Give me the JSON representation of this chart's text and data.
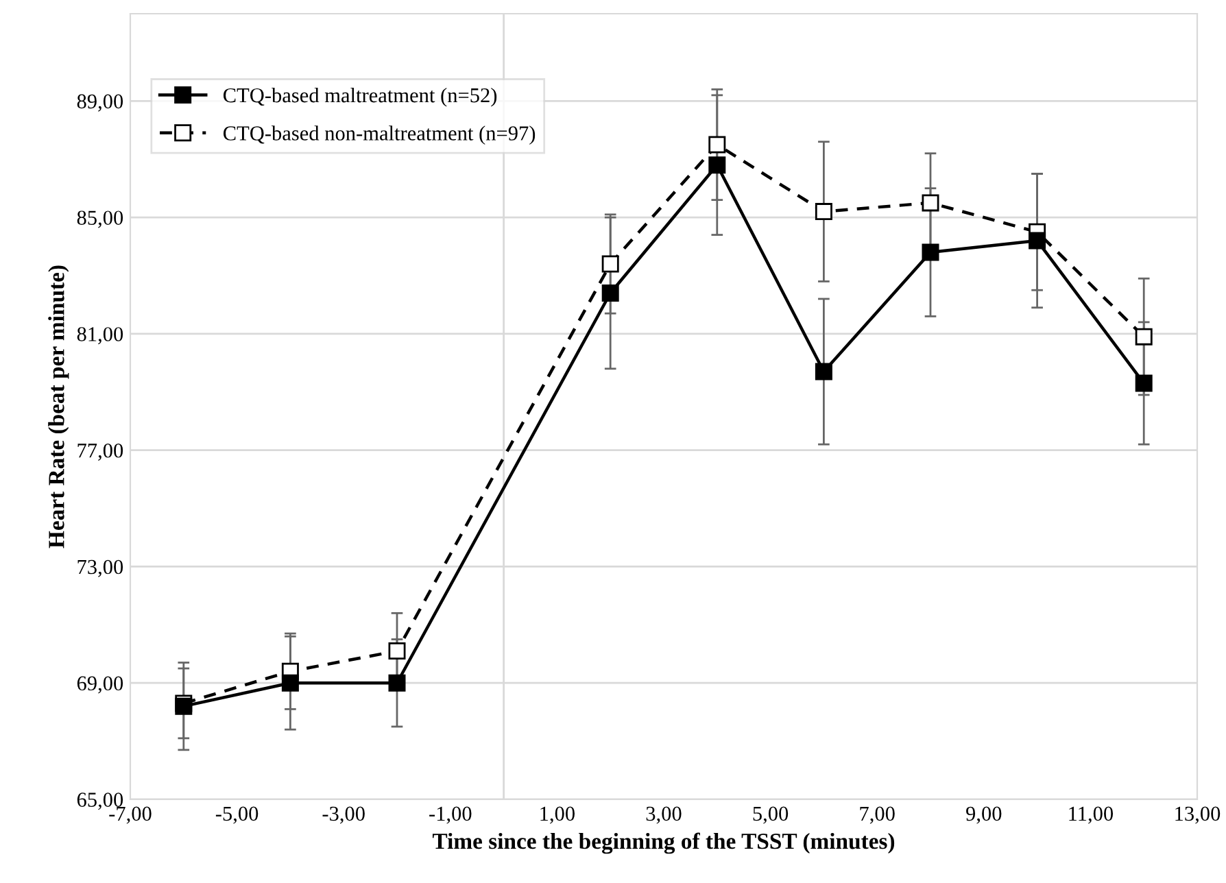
{
  "chart_data": {
    "type": "line",
    "xlabel": "Time since the beginning of the TSST (minutes)",
    "ylabel": "Heart Rate (beat per minute)",
    "x": [
      -6,
      -4,
      -2,
      2,
      4,
      6,
      8,
      10,
      12
    ],
    "series": [
      {
        "name": "CTQ-based maltreatment (n=52)",
        "color": "#000000",
        "marker": "square",
        "line_style": "solid",
        "values": [
          68.2,
          69.0,
          69.0,
          82.4,
          86.8,
          79.7,
          83.8,
          84.2,
          79.3
        ],
        "errors": [
          1.5,
          1.6,
          1.5,
          2.6,
          2.4,
          2.5,
          2.2,
          2.3,
          2.1
        ]
      },
      {
        "name": "CTQ-based non-maltreatment (n=97)",
        "color": "#000000",
        "marker": "square",
        "line_style": "dashed",
        "values": [
          68.3,
          69.4,
          70.1,
          83.4,
          87.5,
          85.2,
          85.5,
          84.5,
          80.9
        ],
        "errors": [
          1.2,
          1.3,
          1.3,
          1.7,
          1.9,
          2.4,
          1.7,
          2.0,
          2.0
        ]
      }
    ],
    "xlim": [
      -7,
      13
    ],
    "ylim": [
      65,
      92
    ],
    "xticks": [
      {
        "value": -7,
        "label": "-7,00"
      },
      {
        "value": -5,
        "label": "-5,00"
      },
      {
        "value": -3,
        "label": "-3,00"
      },
      {
        "value": -1,
        "label": "-1,00"
      },
      {
        "value": 1,
        "label": "1,00"
      },
      {
        "value": 3,
        "label": "3,00"
      },
      {
        "value": 5,
        "label": "5,00"
      },
      {
        "value": 7,
        "label": "7,00"
      },
      {
        "value": 9,
        "label": "9,00"
      },
      {
        "value": 11,
        "label": "11,00"
      },
      {
        "value": 13,
        "label": "13,00"
      }
    ],
    "yticks": [
      {
        "value": 65,
        "label": "65,00"
      },
      {
        "value": 69,
        "label": "69,00"
      },
      {
        "value": 73,
        "label": "73,00"
      },
      {
        "value": 77,
        "label": "77,00"
      },
      {
        "value": 81,
        "label": "81,00"
      },
      {
        "value": 85,
        "label": "85,00"
      },
      {
        "value": 89,
        "label": "89,00"
      }
    ],
    "ref_lines": [
      {
        "axis": "x",
        "value": 0,
        "color": "#d9d9d9"
      }
    ],
    "grid": "y",
    "legend": "top left"
  }
}
